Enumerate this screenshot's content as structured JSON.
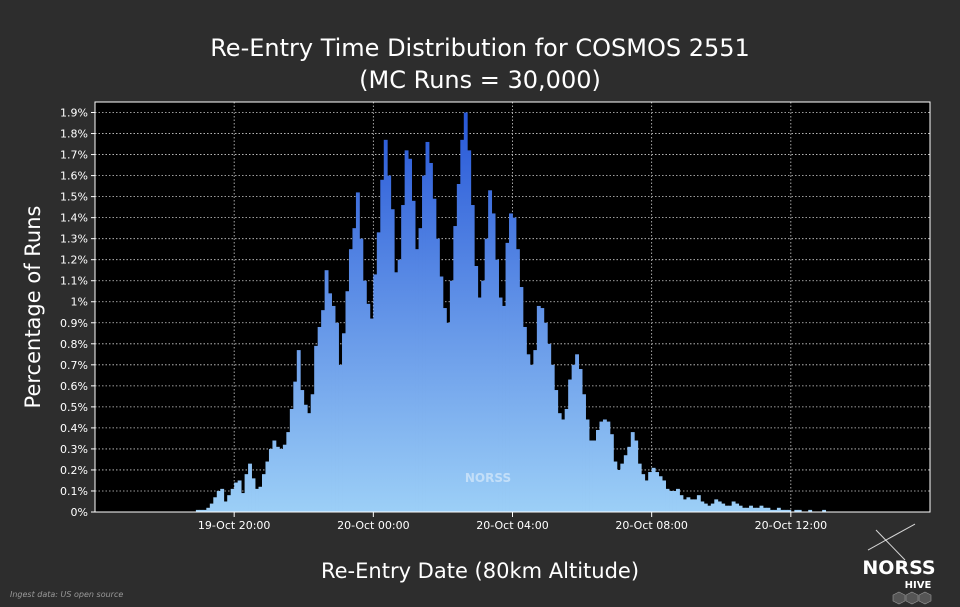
{
  "chart_data": {
    "type": "bar",
    "title": "Re-Entry Time Distribution for COSMOS 2551",
    "subtitle": "(MC Runs = 30,000)",
    "xlabel": "Re-Entry Date (80km Altitude)",
    "ylabel": "Percentage of Runs",
    "ylim": [
      0,
      1.95
    ],
    "ytick_values": [
      0,
      0.1,
      0.2,
      0.3,
      0.4,
      0.5,
      0.6,
      0.7,
      0.8,
      0.9,
      1,
      1.1,
      1.2,
      1.3,
      1.4,
      1.5,
      1.6,
      1.7,
      1.8,
      1.9
    ],
    "ytick_labels": [
      "0%",
      "0.1%",
      "0.2%",
      "0.3%",
      "0.4%",
      "0.5%",
      "0.6%",
      "0.7%",
      "0.8%",
      "0.9%",
      "1%",
      "1.1%",
      "1.2%",
      "1.3%",
      "1.4%",
      "1.5%",
      "1.6%",
      "1.7%",
      "1.8%",
      "1.9%"
    ],
    "x_unit": "hours since 19-Oct 16:00",
    "xlim": [
      0,
      24
    ],
    "xtick_values": [
      4,
      8,
      12,
      16,
      20
    ],
    "xtick_labels": [
      "19-Oct 20:00",
      "20-Oct 00:00",
      "20-Oct 04:00",
      "20-Oct 08:00",
      "20-Oct 12:00"
    ],
    "grid": true,
    "bin_width_hours": 0.1,
    "bin_start_hours": 0.8,
    "values": [
      0.0,
      0.0,
      0.0,
      0.0,
      0.0,
      0.0,
      0.0,
      0.0,
      0.0,
      0.0,
      0.0,
      0.0,
      0.0,
      0.0,
      0.0,
      0.0,
      0.0,
      0.0,
      0.0,
      0.0,
      0.0,
      0.01,
      0.01,
      0.01,
      0.02,
      0.04,
      0.07,
      0.1,
      0.11,
      0.05,
      0.08,
      0.11,
      0.14,
      0.15,
      0.09,
      0.18,
      0.23,
      0.16,
      0.11,
      0.12,
      0.18,
      0.24,
      0.3,
      0.34,
      0.31,
      0.3,
      0.32,
      0.38,
      0.49,
      0.62,
      0.77,
      0.58,
      0.51,
      0.47,
      0.56,
      0.79,
      0.88,
      0.96,
      1.15,
      1.04,
      0.98,
      0.9,
      0.7,
      0.85,
      1.05,
      1.25,
      1.35,
      1.52,
      1.3,
      1.1,
      0.99,
      0.92,
      1.13,
      1.33,
      1.58,
      1.77,
      1.6,
      1.44,
      1.14,
      1.2,
      1.46,
      1.72,
      1.68,
      1.48,
      1.25,
      1.35,
      1.6,
      1.76,
      1.66,
      1.49,
      1.3,
      1.12,
      0.97,
      0.9,
      1.1,
      1.36,
      1.56,
      1.77,
      1.9,
      1.72,
      1.46,
      1.17,
      1.02,
      1.1,
      1.3,
      1.53,
      1.42,
      1.2,
      1.02,
      0.98,
      1.28,
      1.42,
      1.4,
      1.25,
      1.07,
      0.88,
      0.75,
      0.7,
      0.77,
      0.98,
      0.97,
      0.9,
      0.8,
      0.7,
      0.58,
      0.47,
      0.44,
      0.49,
      0.63,
      0.7,
      0.75,
      0.68,
      0.56,
      0.44,
      0.34,
      0.34,
      0.39,
      0.43,
      0.44,
      0.43,
      0.37,
      0.24,
      0.2,
      0.23,
      0.27,
      0.31,
      0.38,
      0.34,
      0.23,
      0.18,
      0.15,
      0.19,
      0.21,
      0.19,
      0.17,
      0.15,
      0.11,
      0.1,
      0.1,
      0.11,
      0.08,
      0.06,
      0.07,
      0.06,
      0.06,
      0.08,
      0.05,
      0.04,
      0.03,
      0.04,
      0.06,
      0.05,
      0.04,
      0.03,
      0.03,
      0.05,
      0.04,
      0.03,
      0.02,
      0.02,
      0.03,
      0.02,
      0.02,
      0.03,
      0.02,
      0.02,
      0.01,
      0.01,
      0.02,
      0.01,
      0.01,
      0.01,
      0.0,
      0.01,
      0.01,
      0.0,
      0.0,
      0.01,
      0.0,
      0.0,
      0.0,
      0.01,
      0.0,
      0.0,
      0.0,
      0.0,
      0.0,
      0.0,
      0.0,
      0.0,
      0.0,
      0.0,
      0.0,
      0.0,
      0.0,
      0.0,
      0.0,
      0.0,
      0.0,
      0.0,
      0.0,
      0.0,
      0.0,
      0.0,
      0.0,
      0.0
    ]
  },
  "footnote": "Ingest data: US open source",
  "logo": {
    "line1": "NORSS",
    "line2": "HIVE"
  },
  "watermark": {
    "text": "NORSS"
  },
  "colors": {
    "background": "#2d2d2d",
    "plot_background": "#000000",
    "bar_top": "#2a5ad8",
    "bar_bottom": "#9ccff7",
    "grid": "#d0d0d0",
    "frame": "#ffffff"
  }
}
